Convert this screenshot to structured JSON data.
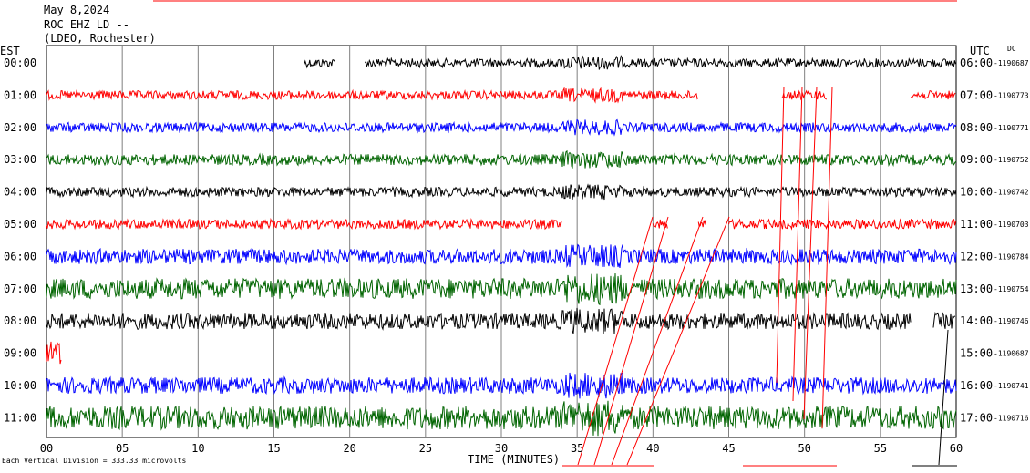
{
  "header": {
    "date": "May 8,2024",
    "station": "ROC EHZ LD --",
    "network": "(LDEO, Rochester)"
  },
  "axis_labels": {
    "left_zone": "EST",
    "right_zone": "UTC",
    "dc": "DC",
    "xlabel": "TIME (MINUTES)",
    "scale_note": "Each Vertical Division =  333.33 microvolts"
  },
  "chart_data": {
    "type": "line",
    "title": "",
    "xlabel": "TIME (MINUTES)",
    "x_ticks": [
      "00",
      "05",
      "10",
      "15",
      "20",
      "25",
      "30",
      "35",
      "40",
      "45",
      "50",
      "55",
      "60"
    ],
    "xlim": [
      0,
      60
    ],
    "grid": "vertical",
    "trace_colors": [
      "#000000",
      "#ff0000",
      "#0000ff",
      "#006400"
    ],
    "rows": [
      {
        "est": "00:00",
        "utc": "06:00",
        "dc": "-1190687",
        "color": "#000000",
        "amp": 0.32,
        "segments": [
          [
            17,
            19
          ],
          [
            21,
            60
          ]
        ]
      },
      {
        "est": "01:00",
        "utc": "07:00",
        "dc": "-1190773",
        "color": "#ff0000",
        "amp": 0.32,
        "segments": [
          [
            0,
            43
          ],
          [
            48.5,
            51.5
          ],
          [
            57,
            60
          ]
        ]
      },
      {
        "est": "02:00",
        "utc": "08:00",
        "dc": "-1190771",
        "color": "#0000ff",
        "amp": 0.35,
        "segments": [
          [
            0,
            60
          ]
        ]
      },
      {
        "est": "03:00",
        "utc": "09:00",
        "dc": "-1190752",
        "color": "#006400",
        "amp": 0.4,
        "segments": [
          [
            0,
            60
          ]
        ]
      },
      {
        "est": "04:00",
        "utc": "10:00",
        "dc": "-1190742",
        "color": "#000000",
        "amp": 0.35,
        "segments": [
          [
            0,
            60
          ]
        ]
      },
      {
        "est": "05:00",
        "utc": "11:00",
        "dc": "-1190703",
        "color": "#ff0000",
        "amp": 0.35,
        "segments": [
          [
            0,
            34
          ],
          [
            40,
            41
          ],
          [
            43,
            43.5
          ],
          [
            45,
            60
          ]
        ]
      },
      {
        "est": "06:00",
        "utc": "12:00",
        "dc": "-1190784",
        "color": "#0000ff",
        "amp": 0.55,
        "segments": [
          [
            0,
            60
          ]
        ]
      },
      {
        "est": "07:00",
        "utc": "13:00",
        "dc": "-1190754",
        "color": "#006400",
        "amp": 0.75,
        "segments": [
          [
            0,
            60
          ]
        ]
      },
      {
        "est": "08:00",
        "utc": "14:00",
        "dc": "-1190746",
        "color": "#000000",
        "amp": 0.6,
        "segments": [
          [
            0,
            57
          ],
          [
            58.5,
            60
          ]
        ]
      },
      {
        "est": "09:00",
        "utc": "15:00",
        "dc": "-1190687",
        "color": "#ff0000",
        "amp": 0.9,
        "segments": [
          [
            0,
            1
          ]
        ]
      },
      {
        "est": "10:00",
        "utc": "16:00",
        "dc": "-1190741",
        "color": "#0000ff",
        "amp": 0.6,
        "segments": [
          [
            0,
            60
          ]
        ]
      },
      {
        "est": "11:00",
        "utc": "17:00",
        "dc": "-1190716",
        "color": "#006400",
        "amp": 0.85,
        "segments": [
          [
            0,
            60
          ]
        ]
      }
    ]
  }
}
